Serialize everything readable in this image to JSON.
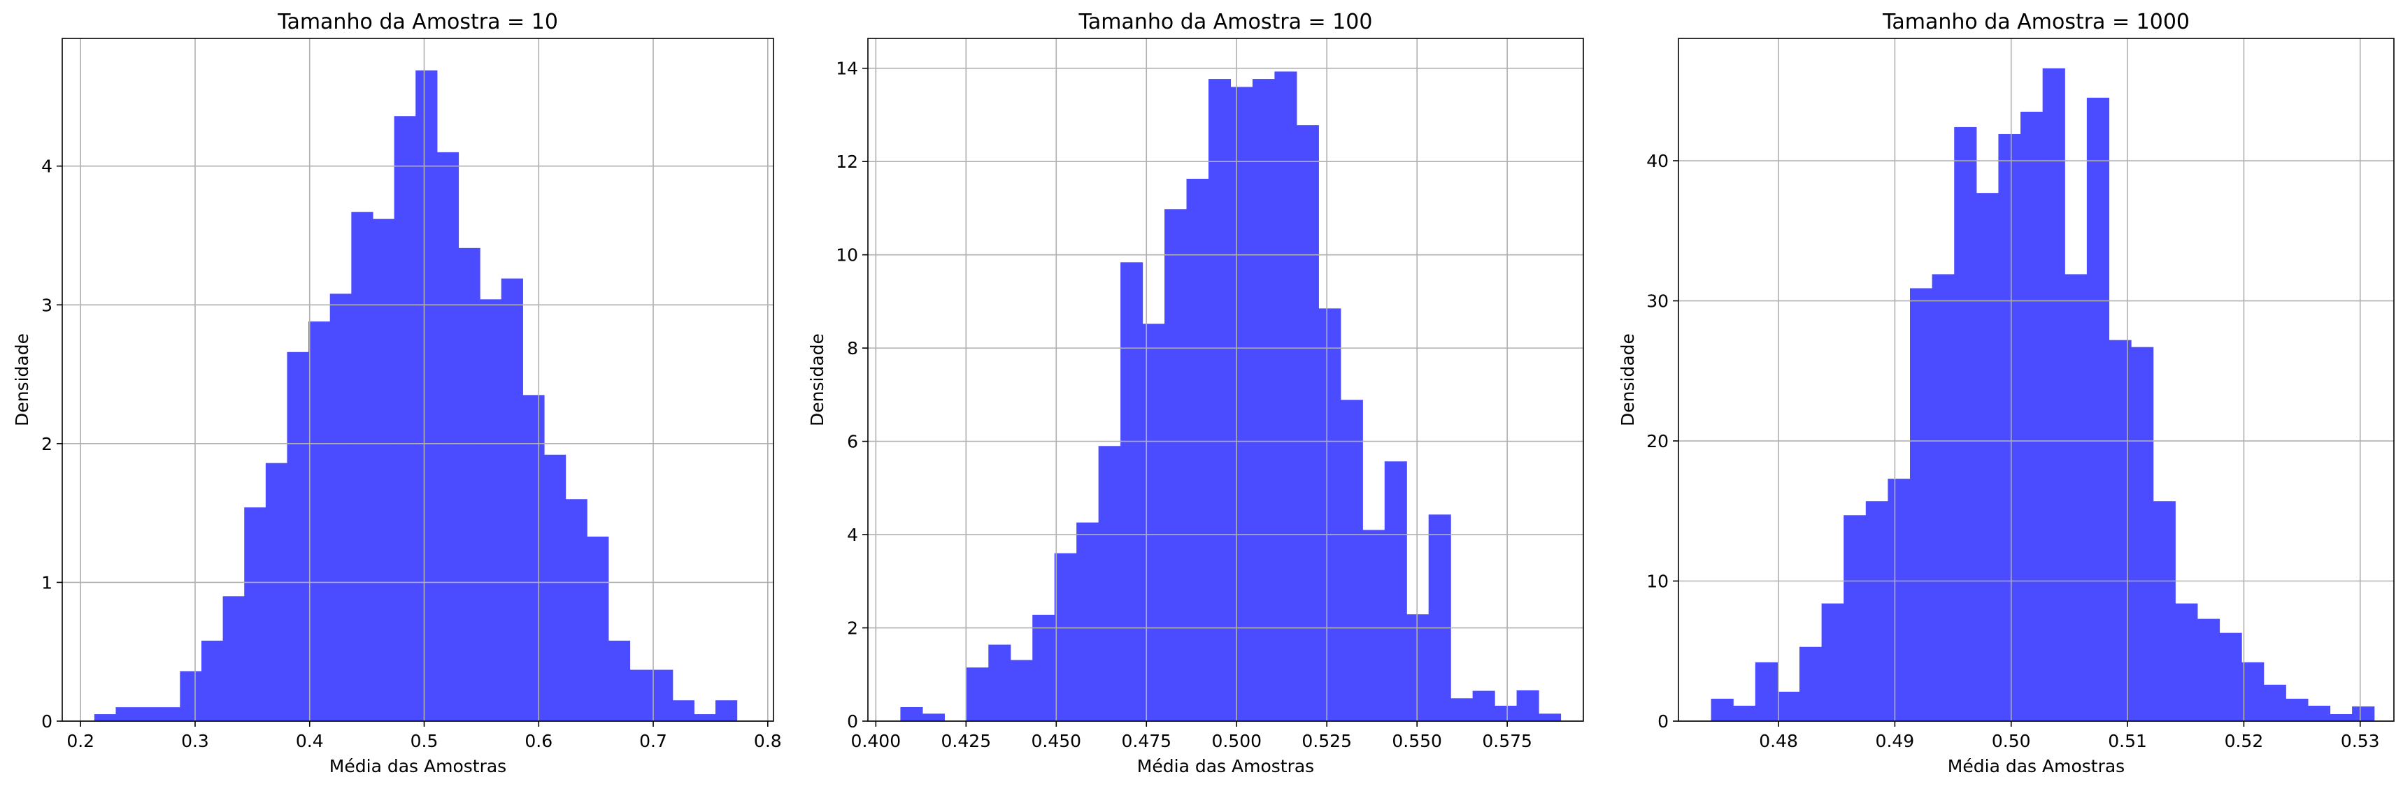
{
  "style": {
    "bar_color": "#4b4bff",
    "grid_color": "#b0b0b0",
    "axis_color": "#000000"
  },
  "chart_data": [
    {
      "type": "bar",
      "title": "Tamanho da Amostra = 10",
      "xlabel": "Média das Amostras",
      "ylabel": "Densidade",
      "grid": true,
      "xlim": [
        0.184,
        0.805
      ],
      "ylim": [
        0,
        4.92
      ],
      "xticks": [
        0.2,
        0.3,
        0.4,
        0.5,
        0.6,
        0.7,
        0.8
      ],
      "xtick_labels": [
        "0.2",
        "0.3",
        "0.4",
        "0.5",
        "0.6",
        "0.7",
        "0.8"
      ],
      "yticks": [
        0,
        1,
        2,
        3,
        4
      ],
      "ytick_labels": [
        "0",
        "1",
        "2",
        "3",
        "4"
      ],
      "bin_edges": [
        0.212,
        0.2307,
        0.2494,
        0.2681,
        0.2868,
        0.3055,
        0.3242,
        0.3429,
        0.3616,
        0.3803,
        0.399,
        0.4177,
        0.4364,
        0.4551,
        0.4738,
        0.4925,
        0.5112,
        0.5299,
        0.5486,
        0.5673,
        0.586,
        0.6047,
        0.6234,
        0.6421,
        0.6608,
        0.6795,
        0.6982,
        0.7169,
        0.7356,
        0.7543,
        0.773
      ],
      "values": [
        0.05,
        0.1,
        0.1,
        0.1,
        0.36,
        0.58,
        0.9,
        1.54,
        1.86,
        2.66,
        2.88,
        3.08,
        3.67,
        3.62,
        4.36,
        4.69,
        4.1,
        3.41,
        3.04,
        3.19,
        2.35,
        1.92,
        1.6,
        1.33,
        0.58,
        0.37,
        0.37,
        0.15,
        0.05,
        0.15
      ]
    },
    {
      "type": "bar",
      "title": "Tamanho da Amostra = 100",
      "xlabel": "Média das Amostras",
      "ylabel": "Densidade",
      "grid": true,
      "xlim": [
        0.3978,
        0.5961
      ],
      "ylim": [
        0,
        14.64
      ],
      "xticks": [
        0.4,
        0.425,
        0.45,
        0.475,
        0.5,
        0.525,
        0.55,
        0.575
      ],
      "xtick_labels": [
        "0.400",
        "0.425",
        "0.450",
        "0.475",
        "0.500",
        "0.525",
        "0.550",
        "0.575"
      ],
      "yticks": [
        0,
        2,
        4,
        6,
        8,
        10,
        12,
        14
      ],
      "ytick_labels": [
        "0",
        "2",
        "4",
        "6",
        "8",
        "10",
        "12",
        "14"
      ],
      "bin_edges": [
        0.4068,
        0.4129,
        0.419,
        0.4251,
        0.4312,
        0.4373,
        0.4434,
        0.4495,
        0.4556,
        0.4617,
        0.4678,
        0.4739,
        0.48,
        0.4861,
        0.4922,
        0.4983,
        0.5044,
        0.5105,
        0.5166,
        0.5227,
        0.5288,
        0.5349,
        0.541,
        0.5471,
        0.5532,
        0.5593,
        0.5654,
        0.5715,
        0.5776,
        0.5837,
        0.5898
      ],
      "values": [
        0.3,
        0.16,
        0.0,
        1.15,
        1.64,
        1.31,
        2.28,
        3.6,
        4.26,
        5.9,
        9.84,
        8.52,
        10.98,
        11.63,
        13.77,
        13.6,
        13.77,
        13.93,
        12.78,
        8.85,
        6.89,
        4.1,
        5.57,
        2.29,
        4.43,
        0.49,
        0.65,
        0.33,
        0.66,
        0.16
      ]
    },
    {
      "type": "bar",
      "title": "Tamanho da Amostra = 1000",
      "xlabel": "Média das Amostras",
      "ylabel": "Densidade",
      "grid": true,
      "xlim": [
        0.4714,
        0.5329
      ],
      "ylim": [
        0,
        48.73
      ],
      "xticks": [
        0.48,
        0.49,
        0.5,
        0.51,
        0.52,
        0.53
      ],
      "xtick_labels": [
        "0.48",
        "0.49",
        "0.50",
        "0.51",
        "0.52",
        "0.53"
      ],
      "yticks": [
        0,
        10,
        20,
        30,
        40
      ],
      "ytick_labels": [
        "0",
        "10",
        "20",
        "30",
        "40"
      ],
      "bin_edges": [
        0.4742,
        0.4761,
        0.478,
        0.4799,
        0.4818,
        0.4837,
        0.4856,
        0.4875,
        0.4894,
        0.4913,
        0.4932,
        0.4951,
        0.497,
        0.4989,
        0.5008,
        0.5027,
        0.5046,
        0.5065,
        0.5084,
        0.5103,
        0.5122,
        0.5141,
        0.516,
        0.5179,
        0.5198,
        0.5217,
        0.5236,
        0.5255,
        0.5274,
        0.5293,
        0.5312
      ],
      "values": [
        1.6,
        1.1,
        4.2,
        2.1,
        5.3,
        8.4,
        14.7,
        15.7,
        17.3,
        30.9,
        31.9,
        42.4,
        37.7,
        41.9,
        43.5,
        46.6,
        31.9,
        44.5,
        27.2,
        26.7,
        15.7,
        8.4,
        7.3,
        6.3,
        4.2,
        2.6,
        1.6,
        1.1,
        0.5,
        1.05
      ]
    }
  ]
}
